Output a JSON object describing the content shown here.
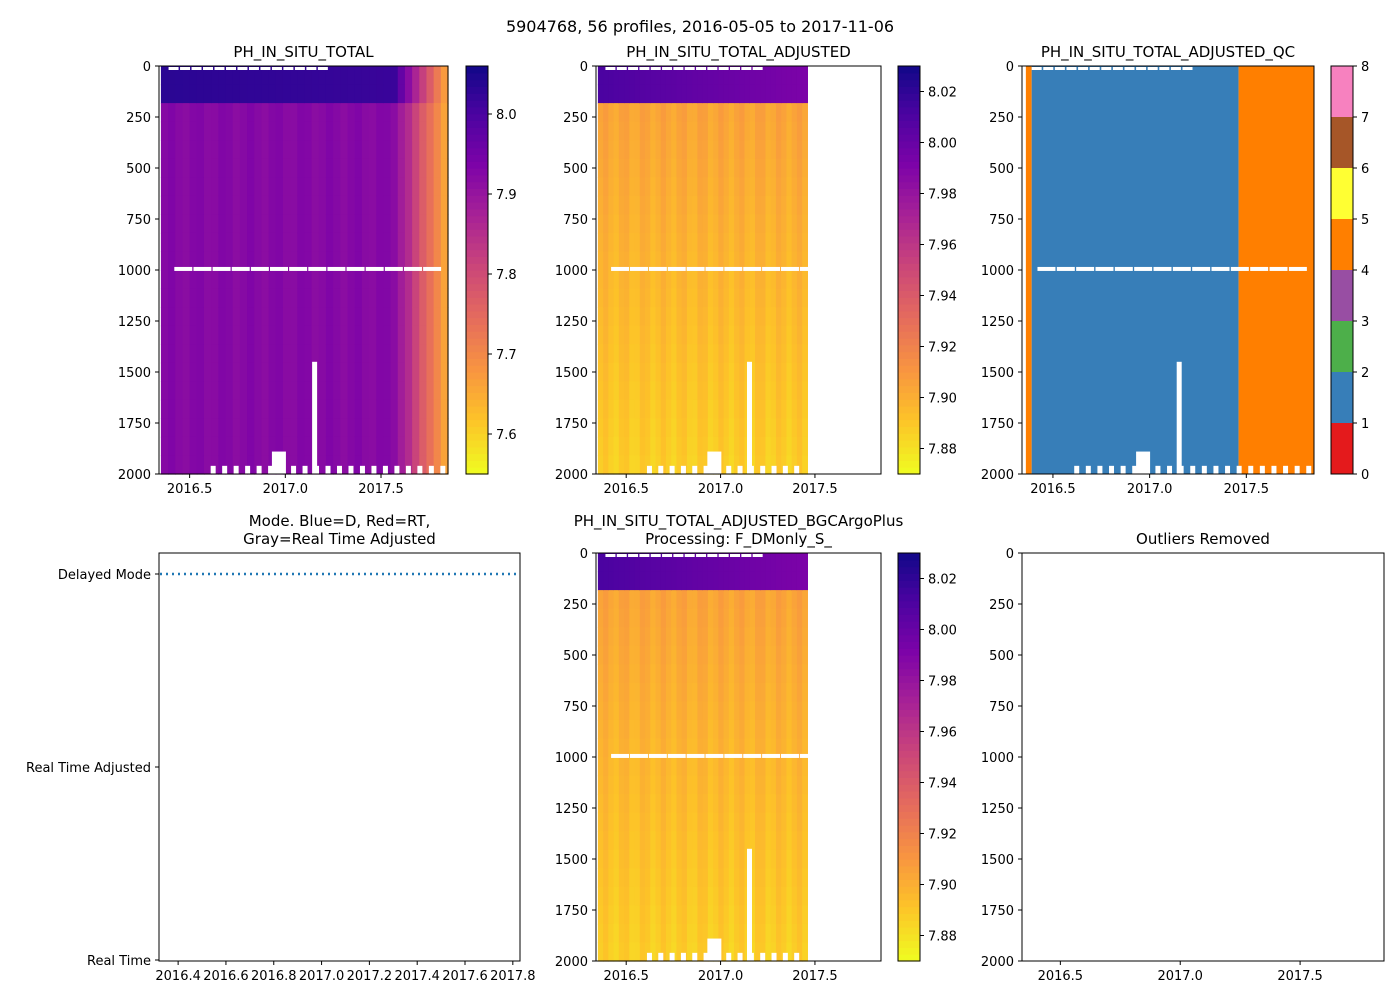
{
  "figure_title": "5904768, 56 profiles, 2016-05-05 to 2017-11-06",
  "chart_data": [
    {
      "id": "p1",
      "type": "heatmap",
      "title": "PH_IN_SITU_TOTAL",
      "xlim": [
        2016.34,
        2017.85
      ],
      "ylim": [
        2000,
        0
      ],
      "xticks": [
        2016.5,
        2017.0,
        2017.5
      ],
      "xtick_labels": [
        "2016.5",
        "2017.0",
        "2017.5"
      ],
      "yticks": [
        0,
        250,
        500,
        750,
        1000,
        1250,
        1500,
        1750,
        2000
      ],
      "ytick_labels": [
        "0",
        "250",
        "500",
        "750",
        "1000",
        "1250",
        "1500",
        "1750",
        "2000"
      ],
      "colormap": "plasma_r",
      "color_range": [
        7.55,
        8.06
      ],
      "colorbar_ticks": [
        7.6,
        7.7,
        7.8,
        7.9,
        8.0
      ],
      "colorbar_labels": [
        "7.6",
        "7.7",
        "7.8",
        "7.9",
        "8.0"
      ],
      "data_end": 2017.85,
      "surface_value": 8.03,
      "mixed_depth": 160,
      "deep_value": 7.92,
      "late_start": 2017.55,
      "late_value": 7.62
    },
    {
      "id": "p2",
      "type": "heatmap",
      "title": "PH_IN_SITU_TOTAL_ADJUSTED",
      "xlim": [
        2016.34,
        2017.85
      ],
      "ylim": [
        2000,
        0
      ],
      "xticks": [
        2016.5,
        2017.0,
        2017.5
      ],
      "xtick_labels": [
        "2016.5",
        "2017.0",
        "2017.5"
      ],
      "yticks": [
        0,
        250,
        500,
        750,
        1000,
        1250,
        1500,
        1750,
        2000
      ],
      "ytick_labels": [
        "0",
        "250",
        "500",
        "750",
        "1000",
        "1250",
        "1500",
        "1750",
        "2000"
      ],
      "colormap": "plasma_r",
      "color_range": [
        7.87,
        8.03
      ],
      "colorbar_ticks": [
        7.88,
        7.9,
        7.92,
        7.94,
        7.96,
        7.98,
        8.0,
        8.02
      ],
      "colorbar_labels": [
        "7.88",
        "7.90",
        "7.92",
        "7.94",
        "7.96",
        "7.98",
        "8.00",
        "8.02"
      ],
      "data_end": 2017.46,
      "surface_value": 8.01,
      "mixed_depth": 150,
      "deep_value": 7.905,
      "bottom_value": 7.885
    },
    {
      "id": "p3",
      "type": "heatmap",
      "title": "PH_IN_SITU_TOTAL_ADJUSTED_QC",
      "xlim": [
        2016.34,
        2017.85
      ],
      "ylim": [
        2000,
        0
      ],
      "xticks": [
        2016.5,
        2017.0,
        2017.5
      ],
      "xtick_labels": [
        "2016.5",
        "2017.0",
        "2017.5"
      ],
      "yticks": [
        0,
        250,
        500,
        750,
        1000,
        1250,
        1500,
        1750,
        2000
      ],
      "ytick_labels": [
        "0",
        "250",
        "500",
        "750",
        "1000",
        "1250",
        "1500",
        "1750",
        "2000"
      ],
      "qc_segments": [
        {
          "from": 2016.36,
          "to": 2016.39,
          "flag": 4
        },
        {
          "from": 2016.39,
          "to": 2017.46,
          "flag": 1
        },
        {
          "from": 2017.46,
          "to": 2017.85,
          "flag": 4
        }
      ],
      "qc_colors": [
        "#e41a1c",
        "#377eb8",
        "#4daf4a",
        "#984ea3",
        "#ff7f00",
        "#ffff33",
        "#a65628",
        "#f781bf",
        "#999999"
      ],
      "colorbar_ticks": [
        0,
        1,
        2,
        3,
        4,
        5,
        6,
        7,
        8
      ],
      "colorbar_labels": [
        "0",
        "1",
        "2",
        "3",
        "4",
        "5",
        "6",
        "7",
        "8"
      ]
    },
    {
      "id": "p4",
      "type": "line",
      "title": "Mode. Blue=D, Red=RT,",
      "title_line2": "Gray=Real Time Adjusted",
      "xlim": [
        2016.34,
        2017.85
      ],
      "xticks": [
        2016.42,
        2016.62,
        2016.82,
        2017.02,
        2017.22,
        2017.42,
        2017.62,
        2017.82
      ],
      "xtick_labels": [
        "2016.4",
        "2016.6",
        "2016.8",
        "2017.0",
        "2017.2",
        "2017.4",
        "2017.6",
        "2017.8"
      ],
      "yticks": [
        2,
        1,
        0
      ],
      "ytick_labels": [
        "Delayed Mode",
        "Real Time Adjusted",
        "Real Time"
      ],
      "series": [
        {
          "name": "Delayed",
          "value": 2,
          "style": "dotted",
          "color": "#1f77b4"
        }
      ]
    },
    {
      "id": "p5",
      "type": "heatmap",
      "title": "PH_IN_SITU_TOTAL_ADJUSTED_BGCArgoPlus",
      "title_line2": "Processing: F_DMonly_S_",
      "xlim": [
        2016.34,
        2017.85
      ],
      "ylim": [
        2000,
        0
      ],
      "xticks": [
        2016.5,
        2017.0,
        2017.5
      ],
      "xtick_labels": [
        "2016.5",
        "2017.0",
        "2017.5"
      ],
      "yticks": [
        0,
        250,
        500,
        750,
        1000,
        1250,
        1500,
        1750,
        2000
      ],
      "ytick_labels": [
        "0",
        "250",
        "500",
        "750",
        "1000",
        "1250",
        "1500",
        "1750",
        "2000"
      ],
      "colormap": "plasma_r",
      "color_range": [
        7.87,
        8.03
      ],
      "colorbar_ticks": [
        7.88,
        7.9,
        7.92,
        7.94,
        7.96,
        7.98,
        8.0,
        8.02
      ],
      "colorbar_labels": [
        "7.88",
        "7.90",
        "7.92",
        "7.94",
        "7.96",
        "7.98",
        "8.00",
        "8.02"
      ],
      "data_end": 2017.46,
      "surface_value": 8.01,
      "mixed_depth": 150,
      "deep_value": 7.905,
      "bottom_value": 7.885
    },
    {
      "id": "p6",
      "type": "scatter",
      "title": "Outliers Removed",
      "xlim": [
        2016.34,
        2017.85
      ],
      "ylim": [
        2000,
        0
      ],
      "xticks": [
        2016.5,
        2017.0,
        2017.5
      ],
      "xtick_labels": [
        "2016.5",
        "2017.0",
        "2017.5"
      ],
      "yticks": [
        0,
        250,
        500,
        750,
        1000,
        1250,
        1500,
        1750,
        2000
      ],
      "ytick_labels": [
        "0",
        "250",
        "500",
        "750",
        "1000",
        "1250",
        "1500",
        "1750",
        "2000"
      ],
      "points": []
    }
  ]
}
